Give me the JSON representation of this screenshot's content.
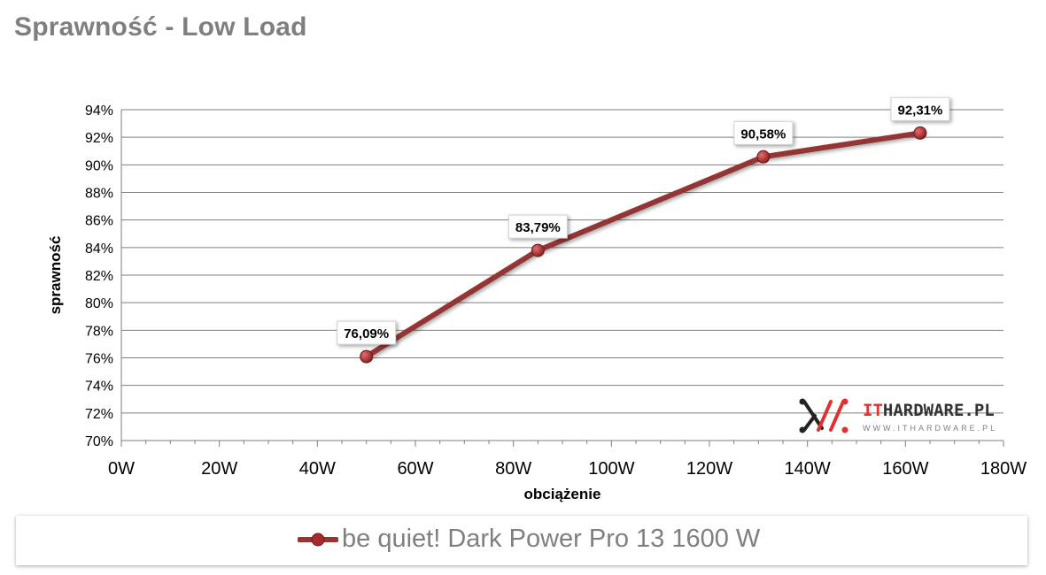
{
  "page_title": "Sprawność - Low Load",
  "colors": {
    "series": "#943634",
    "marker": "#a52a2a",
    "grid": "#7f7f7f",
    "title": "#7f7f7f"
  },
  "logo": {
    "text_it": "IT",
    "text_rest": "HARDWARE.PL",
    "sub": "WWW.ITHARDWARE.PL"
  },
  "chart_data": {
    "type": "line",
    "title": "Sprawność - Low Load",
    "xlabel": "obciążenie",
    "ylabel": "sprawność",
    "xlim": [
      0,
      180
    ],
    "ylim": [
      70,
      94
    ],
    "x_ticks": [
      "0W",
      "20W",
      "40W",
      "60W",
      "80W",
      "100W",
      "120W",
      "140W",
      "160W",
      "180W"
    ],
    "y_ticks": [
      "70%",
      "72%",
      "74%",
      "76%",
      "78%",
      "80%",
      "82%",
      "84%",
      "86%",
      "88%",
      "90%",
      "92%",
      "94%"
    ],
    "grid": true,
    "legend_position": "bottom",
    "series": [
      {
        "name": "be quiet! Dark Power Pro 13 1600 W",
        "x": [
          50,
          85,
          131,
          163
        ],
        "y": [
          76.09,
          83.79,
          90.58,
          92.31
        ],
        "labels": [
          "76,09%",
          "83,79%",
          "90,58%",
          "92,31%"
        ]
      }
    ]
  }
}
